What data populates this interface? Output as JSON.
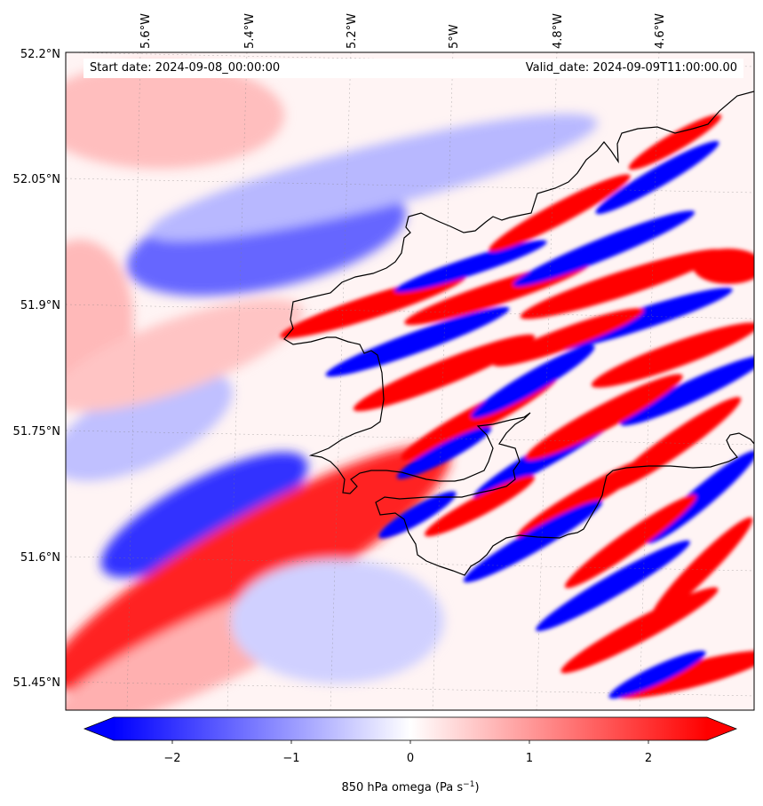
{
  "map": {
    "variable_label": "850 hPa omega (Pa s",
    "variable_unit_sup": "−1",
    "variable_label_close": ")",
    "start_date": "Start date: 2024-09-08_00:00:00",
    "valid_date": "Valid_date: 2024-09-09T11:00:00.00",
    "lon_ticks": [
      "5.6°W",
      "5.4°W",
      "5.2°W",
      "5°W",
      "4.8°W",
      "4.6°W"
    ],
    "lat_ticks": [
      "52.2°N",
      "52.05°N",
      "51.9°N",
      "51.75°N",
      "51.6°N",
      "51.45°N"
    ],
    "colormap": "bwr",
    "colors": {
      "negative": "#0000ff",
      "neutral": "#ffffff",
      "positive": "#ff0000",
      "coastline": "#000000"
    }
  },
  "colorbar": {
    "ticks": [
      "−2",
      "−1",
      "0",
      "1",
      "2"
    ],
    "range": [
      -2.5,
      2.5
    ],
    "extend": "both"
  }
}
